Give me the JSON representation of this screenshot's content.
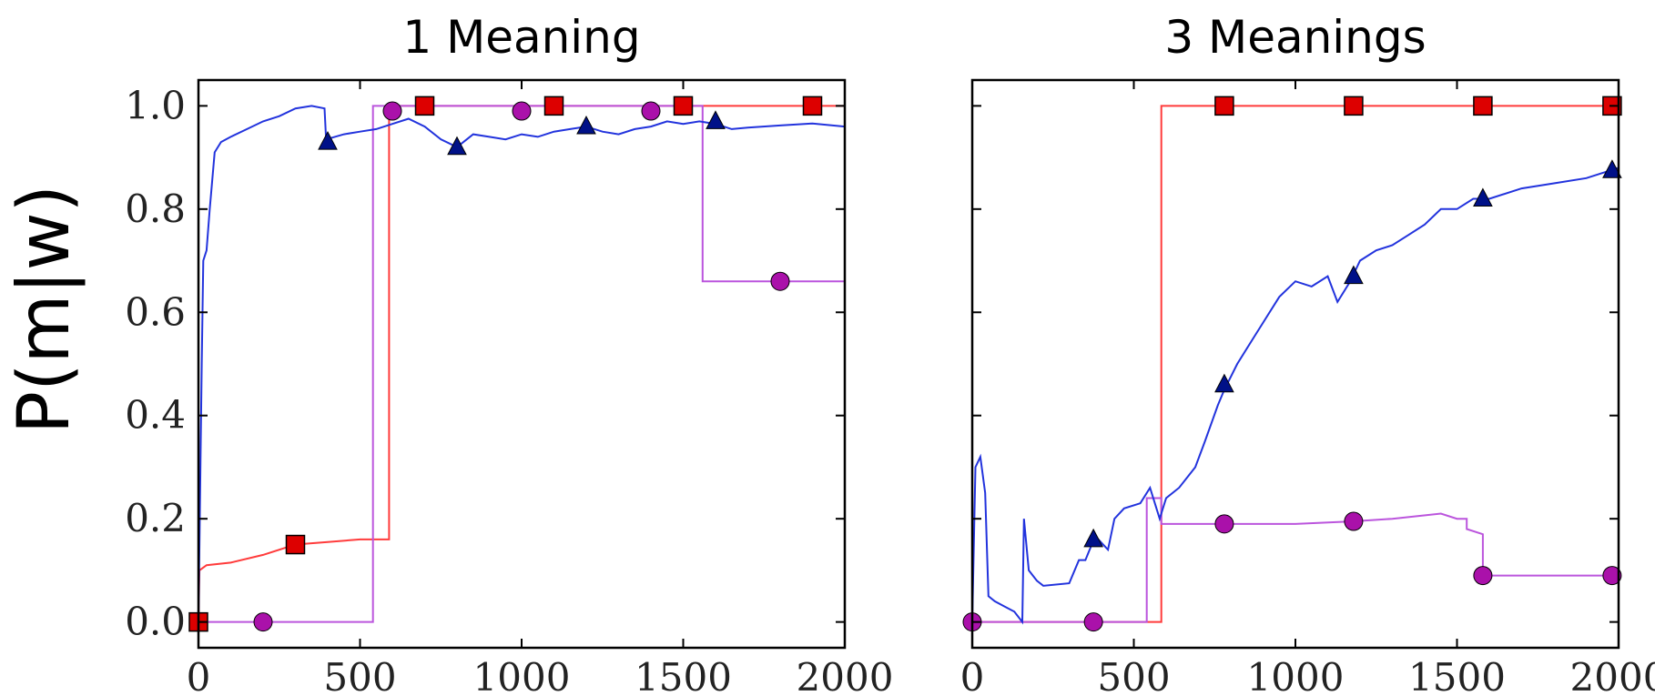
{
  "chart_data": [
    {
      "type": "line",
      "title": "1 Meaning",
      "xlabel": "",
      "ylabel": "P(m|w)",
      "xlim": [
        0,
        2000
      ],
      "ylim": [
        -0.05,
        1.05
      ],
      "xticks": [
        "0",
        "500",
        "1000",
        "1500",
        "2000"
      ],
      "yticks": [
        "0.0",
        "0.2",
        "0.4",
        "0.6",
        "0.8",
        "1.0"
      ],
      "grid": false,
      "legend": "none",
      "series": [
        {
          "color": "#ff3b3b",
          "marker": "square",
          "marker_fill": "#dd0000",
          "points": [
            [
              0,
              0.0
            ],
            [
              3,
              0.1
            ],
            [
              25,
              0.11
            ],
            [
              100,
              0.115
            ],
            [
              200,
              0.13
            ],
            [
              300,
              0.15
            ],
            [
              400,
              0.155
            ],
            [
              500,
              0.16
            ],
            [
              590,
              0.16
            ],
            [
              590,
              1.0
            ],
            [
              2000,
              1.0
            ]
          ],
          "markers": [
            [
              0,
              0.0
            ],
            [
              300,
              0.15
            ],
            [
              700,
              1.0
            ],
            [
              1100,
              1.0
            ],
            [
              1500,
              1.0
            ],
            [
              1900,
              1.0
            ]
          ]
        },
        {
          "color": "#bb55dd",
          "marker": "circle",
          "marker_fill": "#aa11aa",
          "points": [
            [
              0,
              0.0
            ],
            [
              540,
              0.0
            ],
            [
              540,
              1.0
            ],
            [
              1560,
              1.0
            ],
            [
              1560,
              0.66
            ],
            [
              2000,
              0.66
            ]
          ],
          "markers": [
            [
              200,
              0.0
            ],
            [
              600,
              0.99
            ],
            [
              1000,
              0.99
            ],
            [
              1400,
              0.99
            ],
            [
              1800,
              0.66
            ]
          ]
        },
        {
          "color": "#2233dd",
          "marker": "triangle",
          "marker_fill": "#001188",
          "points": [
            [
              0,
              0.0
            ],
            [
              10,
              0.5
            ],
            [
              15,
              0.7
            ],
            [
              25,
              0.72
            ],
            [
              35,
              0.8
            ],
            [
              50,
              0.91
            ],
            [
              70,
              0.93
            ],
            [
              100,
              0.94
            ],
            [
              150,
              0.955
            ],
            [
              200,
              0.97
            ],
            [
              250,
              0.98
            ],
            [
              300,
              0.995
            ],
            [
              350,
              1.0
            ],
            [
              390,
              0.995
            ],
            [
              395,
              0.935
            ],
            [
              450,
              0.945
            ],
            [
              500,
              0.95
            ],
            [
              550,
              0.955
            ],
            [
              600,
              0.965
            ],
            [
              650,
              0.975
            ],
            [
              700,
              0.96
            ],
            [
              750,
              0.935
            ],
            [
              800,
              0.92
            ],
            [
              850,
              0.945
            ],
            [
              900,
              0.94
            ],
            [
              950,
              0.935
            ],
            [
              1000,
              0.945
            ],
            [
              1050,
              0.94
            ],
            [
              1100,
              0.95
            ],
            [
              1150,
              0.955
            ],
            [
              1200,
              0.96
            ],
            [
              1250,
              0.95
            ],
            [
              1300,
              0.945
            ],
            [
              1350,
              0.955
            ],
            [
              1400,
              0.96
            ],
            [
              1450,
              0.97
            ],
            [
              1500,
              0.965
            ],
            [
              1550,
              0.97
            ],
            [
              1600,
              0.965
            ],
            [
              1650,
              0.955
            ],
            [
              1700,
              0.958
            ],
            [
              1800,
              0.962
            ],
            [
              1900,
              0.966
            ],
            [
              2000,
              0.96
            ]
          ],
          "markers": [
            [
              400,
              0.93
            ],
            [
              800,
              0.92
            ],
            [
              1200,
              0.96
            ],
            [
              1600,
              0.97
            ]
          ]
        }
      ]
    },
    {
      "type": "line",
      "title": "3 Meanings",
      "xlabel": "",
      "ylabel": "",
      "xlim": [
        0,
        2000
      ],
      "ylim": [
        -0.05,
        1.05
      ],
      "xticks": [
        "0",
        "500",
        "1000",
        "1500",
        "2000"
      ],
      "yticks": [],
      "grid": false,
      "legend": "none",
      "series": [
        {
          "color": "#ff3b3b",
          "marker": "square",
          "marker_fill": "#dd0000",
          "points": [
            [
              0,
              0.0
            ],
            [
              585,
              0.0
            ],
            [
              585,
              1.0
            ],
            [
              2000,
              1.0
            ]
          ],
          "markers": [
            [
              780,
              1.0
            ],
            [
              1180,
              1.0
            ],
            [
              1580,
              1.0
            ],
            [
              1980,
              1.0
            ]
          ]
        },
        {
          "color": "#bb55dd",
          "marker": "circle",
          "marker_fill": "#aa11aa",
          "points": [
            [
              0,
              0.0
            ],
            [
              540,
              0.0
            ],
            [
              540,
              0.24
            ],
            [
              585,
              0.24
            ],
            [
              585,
              0.19
            ],
            [
              800,
              0.19
            ],
            [
              1000,
              0.19
            ],
            [
              1180,
              0.195
            ],
            [
              1300,
              0.2
            ],
            [
              1450,
              0.21
            ],
            [
              1500,
              0.2
            ],
            [
              1530,
              0.2
            ],
            [
              1530,
              0.18
            ],
            [
              1580,
              0.17
            ],
            [
              1580,
              0.09
            ],
            [
              2000,
              0.09
            ]
          ],
          "markers": [
            [
              0,
              0.0
            ],
            [
              375,
              0.0
            ],
            [
              780,
              0.19
            ],
            [
              1180,
              0.195
            ],
            [
              1580,
              0.09
            ],
            [
              1980,
              0.09
            ]
          ]
        },
        {
          "color": "#2233dd",
          "marker": "triangle",
          "marker_fill": "#001188",
          "points": [
            [
              0,
              0.0
            ],
            [
              10,
              0.3
            ],
            [
              25,
              0.32
            ],
            [
              40,
              0.25
            ],
            [
              50,
              0.05
            ],
            [
              70,
              0.04
            ],
            [
              100,
              0.03
            ],
            [
              130,
              0.02
            ],
            [
              155,
              0.0
            ],
            [
              160,
              0.2
            ],
            [
              175,
              0.1
            ],
            [
              200,
              0.08
            ],
            [
              220,
              0.07
            ],
            [
              300,
              0.075
            ],
            [
              330,
              0.12
            ],
            [
              350,
              0.12
            ],
            [
              370,
              0.15
            ],
            [
              390,
              0.16
            ],
            [
              420,
              0.14
            ],
            [
              440,
              0.2
            ],
            [
              470,
              0.22
            ],
            [
              520,
              0.23
            ],
            [
              550,
              0.26
            ],
            [
              580,
              0.2
            ],
            [
              600,
              0.24
            ],
            [
              640,
              0.26
            ],
            [
              690,
              0.3
            ],
            [
              720,
              0.35
            ],
            [
              760,
              0.42
            ],
            [
              780,
              0.45
            ],
            [
              820,
              0.5
            ],
            [
              870,
              0.55
            ],
            [
              900,
              0.58
            ],
            [
              950,
              0.63
            ],
            [
              1000,
              0.66
            ],
            [
              1050,
              0.65
            ],
            [
              1100,
              0.67
            ],
            [
              1130,
              0.62
            ],
            [
              1170,
              0.66
            ],
            [
              1200,
              0.7
            ],
            [
              1250,
              0.72
            ],
            [
              1300,
              0.73
            ],
            [
              1350,
              0.75
            ],
            [
              1400,
              0.77
            ],
            [
              1450,
              0.8
            ],
            [
              1500,
              0.8
            ],
            [
              1550,
              0.82
            ],
            [
              1600,
              0.82
            ],
            [
              1700,
              0.84
            ],
            [
              1800,
              0.85
            ],
            [
              1900,
              0.86
            ],
            [
              2000,
              0.88
            ]
          ],
          "markers": [
            [
              375,
              0.16
            ],
            [
              780,
              0.46
            ],
            [
              1180,
              0.67
            ],
            [
              1580,
              0.82
            ],
            [
              1980,
              0.875
            ]
          ]
        }
      ]
    }
  ]
}
